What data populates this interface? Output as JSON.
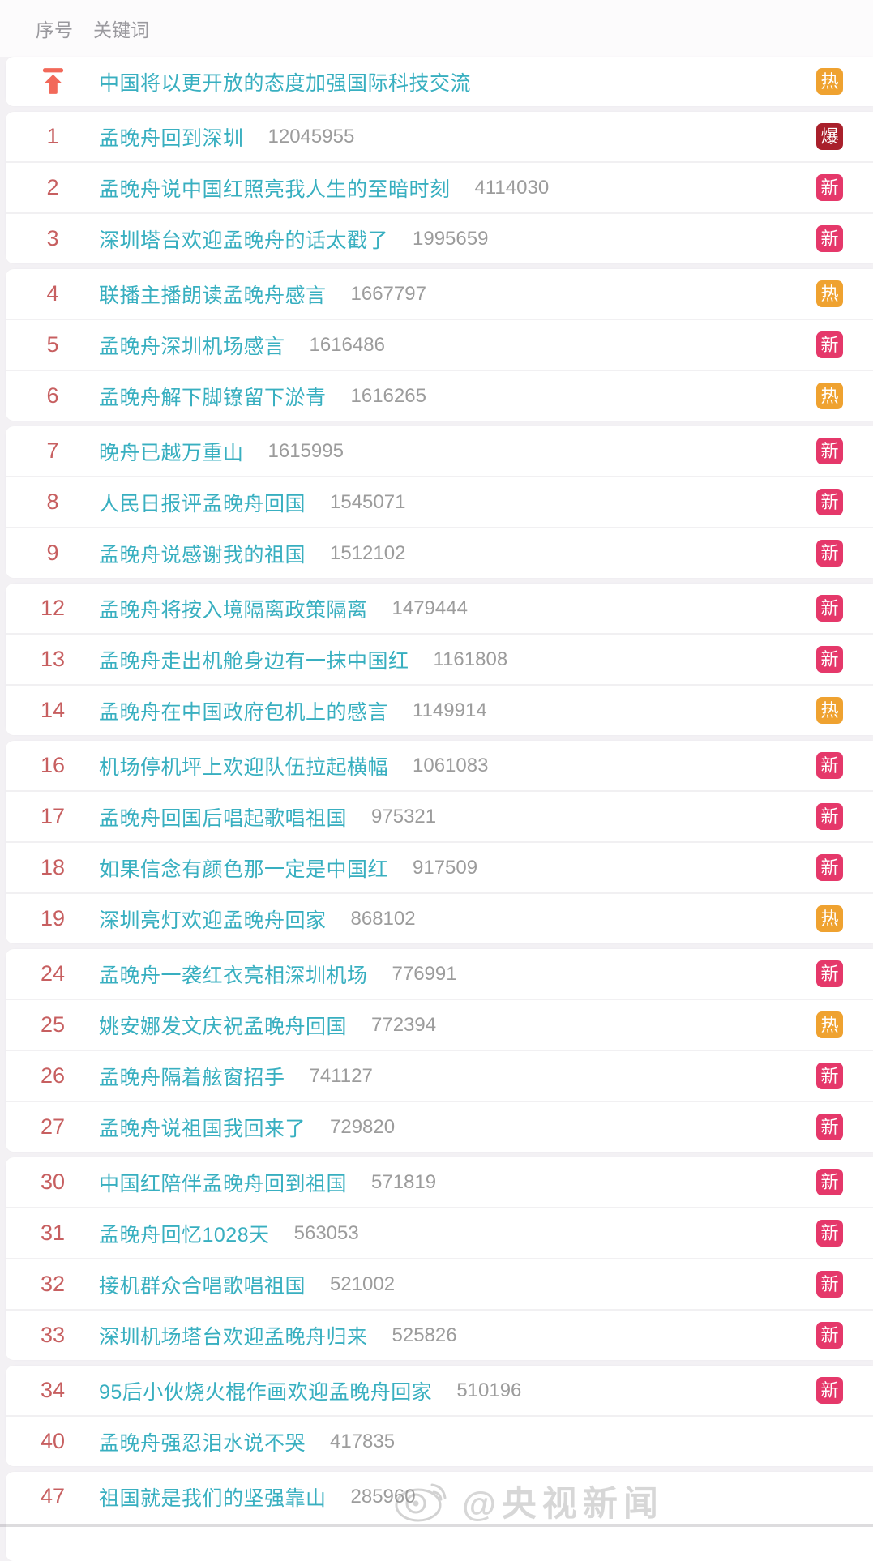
{
  "header": {
    "rank_label": "序号",
    "keyword_label": "关键词"
  },
  "badge_types": {
    "hot": {
      "label": "热",
      "bg": "#efa230"
    },
    "new": {
      "label": "新",
      "bg": "#e5386a"
    },
    "boom": {
      "label": "爆",
      "bg": "#a9202b"
    }
  },
  "colors": {
    "keyword": "#38afc0",
    "rank": "#c75f60",
    "count": "#9c9c9c",
    "page_background": "#f3f1f4",
    "pin_icon": "#f2695a"
  },
  "watermark": {
    "handle": "@央视新闻",
    "logo": "weibo-logo"
  },
  "list": {
    "rows": [
      {
        "rank": "",
        "pinned": true,
        "keyword": "中国将以更开放的态度加强国际科技交流",
        "count": "",
        "badge": "hot"
      },
      {
        "rank": "1",
        "keyword": "孟晚舟回到深圳",
        "count": "12045955",
        "badge": "boom"
      },
      {
        "rank": "2",
        "keyword": "孟晚舟说中国红照亮我人生的至暗时刻",
        "count": "4114030",
        "badge": "new"
      },
      {
        "rank": "3",
        "keyword": "深圳塔台欢迎孟晚舟的话太戳了",
        "count": "1995659",
        "badge": "new"
      },
      {
        "rank": "4",
        "keyword": "联播主播朗读孟晚舟感言",
        "count": "1667797",
        "badge": "hot"
      },
      {
        "rank": "5",
        "keyword": "孟晚舟深圳机场感言",
        "count": "1616486",
        "badge": "new"
      },
      {
        "rank": "6",
        "keyword": "孟晚舟解下脚镣留下淤青",
        "count": "1616265",
        "badge": "hot"
      },
      {
        "rank": "7",
        "keyword": "晚舟已越万重山",
        "count": "1615995",
        "badge": "new"
      },
      {
        "rank": "8",
        "keyword": "人民日报评孟晚舟回国",
        "count": "1545071",
        "badge": "new"
      },
      {
        "rank": "9",
        "keyword": "孟晚舟说感谢我的祖国",
        "count": "1512102",
        "badge": "new"
      },
      {
        "rank": "12",
        "keyword": "孟晚舟将按入境隔离政策隔离",
        "count": "1479444",
        "badge": "new"
      },
      {
        "rank": "13",
        "keyword": "孟晚舟走出机舱身边有一抹中国红",
        "count": "1161808",
        "badge": "new"
      },
      {
        "rank": "14",
        "keyword": "孟晚舟在中国政府包机上的感言",
        "count": "1149914",
        "badge": "hot"
      },
      {
        "rank": "16",
        "keyword": "机场停机坪上欢迎队伍拉起横幅",
        "count": "1061083",
        "badge": "new"
      },
      {
        "rank": "17",
        "keyword": "孟晚舟回国后唱起歌唱祖国",
        "count": "975321",
        "badge": "new"
      },
      {
        "rank": "18",
        "keyword": "如果信念有颜色那一定是中国红",
        "count": "917509",
        "badge": "new"
      },
      {
        "rank": "19",
        "keyword": "深圳亮灯欢迎孟晚舟回家",
        "count": "868102",
        "badge": "hot"
      },
      {
        "rank": "24",
        "keyword": "孟晚舟一袭红衣亮相深圳机场",
        "count": "776991",
        "badge": "new"
      },
      {
        "rank": "25",
        "keyword": "姚安娜发文庆祝孟晚舟回国",
        "count": "772394",
        "badge": "hot"
      },
      {
        "rank": "26",
        "keyword": "孟晚舟隔着舷窗招手",
        "count": "741127",
        "badge": "new"
      },
      {
        "rank": "27",
        "keyword": "孟晚舟说祖国我回来了",
        "count": "729820",
        "badge": "new"
      },
      {
        "rank": "30",
        "keyword": "中国红陪伴孟晚舟回到祖国",
        "count": "571819",
        "badge": "new"
      },
      {
        "rank": "31",
        "keyword": "孟晚舟回忆1028天",
        "count": "563053",
        "badge": "new"
      },
      {
        "rank": "32",
        "keyword": "接机群众合唱歌唱祖国",
        "count": "521002",
        "badge": "new"
      },
      {
        "rank": "33",
        "keyword": "深圳机场塔台欢迎孟晚舟归来",
        "count": "525826",
        "badge": "new"
      },
      {
        "rank": "34",
        "keyword": "95后小伙烧火棍作画欢迎孟晚舟回家",
        "count": "510196",
        "badge": "new"
      },
      {
        "rank": "40",
        "keyword": "孟晚舟强忍泪水说不哭",
        "count": "417835",
        "badge": null
      },
      {
        "rank": "47",
        "keyword": "祖国就是我们的坚强靠山",
        "count": "285960",
        "badge": null
      }
    ],
    "groups": [
      [
        0
      ],
      [
        1,
        2,
        3
      ],
      [
        4,
        5,
        6
      ],
      [
        7,
        8,
        9
      ],
      [
        10,
        11,
        12
      ],
      [
        13,
        14,
        15,
        16
      ],
      [
        17,
        18,
        19,
        20
      ],
      [
        21,
        22,
        23,
        24
      ],
      [
        25,
        26
      ],
      [
        27
      ]
    ]
  }
}
